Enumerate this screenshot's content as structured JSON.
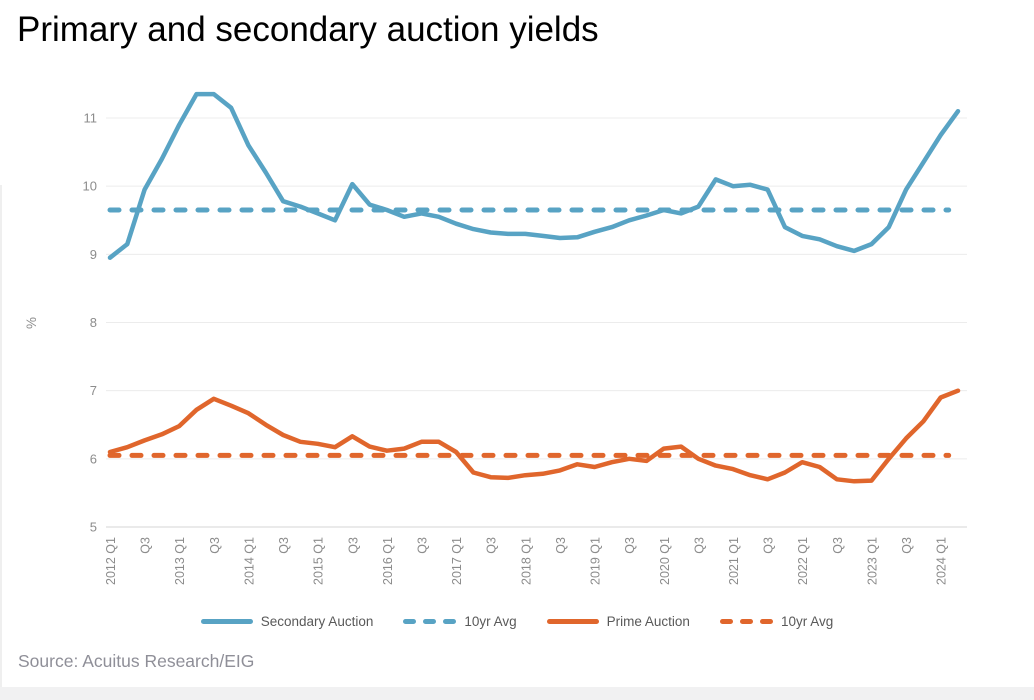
{
  "page": {
    "title": "Primary and secondary auction yields",
    "source": "Source: Acuitus Research/EIG"
  },
  "chart_data": {
    "type": "line",
    "title": "Primary and secondary auction yields",
    "xlabel": "",
    "ylabel": "%",
    "ylim": [
      5,
      11
    ],
    "yticks": [
      5,
      6,
      7,
      8,
      9,
      10,
      11
    ],
    "grid": true,
    "legend_position": "bottom",
    "x_frequency": "quarterly",
    "x_tick_labels": [
      "2012 Q1",
      "Q3",
      "2013 Q1",
      "Q3",
      "2014 Q1",
      "Q3",
      "2015 Q1",
      "Q3",
      "2016 Q1",
      "Q3",
      "2017 Q1",
      "Q3",
      "2018 Q1",
      "Q3",
      "2019 Q1",
      "Q3",
      "2020 Q1",
      "Q3",
      "2021 Q1",
      "Q3",
      "2022 Q1",
      "Q3",
      "2023 Q1",
      "Q3",
      "2024 Q1"
    ],
    "periods": [
      "2012 Q1",
      "2012 Q2",
      "2012 Q3",
      "2012 Q4",
      "2013 Q1",
      "2013 Q2",
      "2013 Q3",
      "2013 Q4",
      "2014 Q1",
      "2014 Q2",
      "2014 Q3",
      "2014 Q4",
      "2015 Q1",
      "2015 Q2",
      "2015 Q3",
      "2015 Q4",
      "2016 Q1",
      "2016 Q2",
      "2016 Q3",
      "2016 Q4",
      "2017 Q1",
      "2017 Q2",
      "2017 Q3",
      "2017 Q4",
      "2018 Q1",
      "2018 Q2",
      "2018 Q3",
      "2018 Q4",
      "2019 Q1",
      "2019 Q2",
      "2019 Q3",
      "2019 Q4",
      "2020 Q1",
      "2020 Q2",
      "2020 Q3",
      "2020 Q4",
      "2021 Q1",
      "2021 Q2",
      "2021 Q3",
      "2021 Q4",
      "2022 Q1",
      "2022 Q2",
      "2022 Q3",
      "2022 Q4",
      "2023 Q1",
      "2023 Q2",
      "2023 Q3",
      "2023 Q4",
      "2024 Q1",
      "2024 Q2"
    ],
    "series": [
      {
        "name": "Secondary Auction",
        "style": "solid",
        "color": "#58A3C4",
        "values": [
          8.95,
          9.15,
          9.95,
          10.4,
          10.9,
          11.35,
          11.35,
          11.15,
          10.6,
          10.2,
          9.78,
          9.7,
          9.6,
          9.5,
          10.03,
          9.73,
          9.65,
          9.55,
          9.6,
          9.55,
          9.45,
          9.37,
          9.32,
          9.3,
          9.3,
          9.27,
          9.24,
          9.25,
          9.33,
          9.4,
          9.5,
          9.57,
          9.65,
          9.6,
          9.7,
          10.1,
          10.0,
          10.02,
          9.95,
          9.4,
          9.27,
          9.22,
          9.12,
          9.05,
          9.15,
          9.4,
          9.95,
          10.35,
          10.75,
          11.1
        ]
      },
      {
        "name": "10yr Avg",
        "style": "dashed",
        "color": "#58A3C4",
        "value": 9.65
      },
      {
        "name": "Prime Auction",
        "style": "solid",
        "color": "#E0662C",
        "values": [
          6.1,
          6.17,
          6.27,
          6.36,
          6.48,
          6.72,
          6.88,
          6.78,
          6.67,
          6.5,
          6.35,
          6.25,
          6.22,
          6.17,
          6.33,
          6.18,
          6.12,
          6.15,
          6.25,
          6.25,
          6.1,
          5.8,
          5.73,
          5.72,
          5.76,
          5.78,
          5.83,
          5.92,
          5.88,
          5.95,
          6.0,
          5.97,
          6.15,
          6.18,
          6.0,
          5.9,
          5.85,
          5.76,
          5.7,
          5.8,
          5.95,
          5.88,
          5.7,
          5.67,
          5.68,
          6.0,
          6.3,
          6.55,
          6.9,
          7.0
        ]
      },
      {
        "name": "10yr Avg",
        "style": "dashed",
        "color": "#E0662C",
        "value": 6.05
      }
    ],
    "colors": {
      "secondary_auction": "#58A3C4",
      "prime_auction": "#E0662C",
      "gridline": "#ECECEC",
      "axis_text": "#8C8C8C",
      "legend_text": "#595959",
      "source_text": "#8F8F98"
    }
  }
}
